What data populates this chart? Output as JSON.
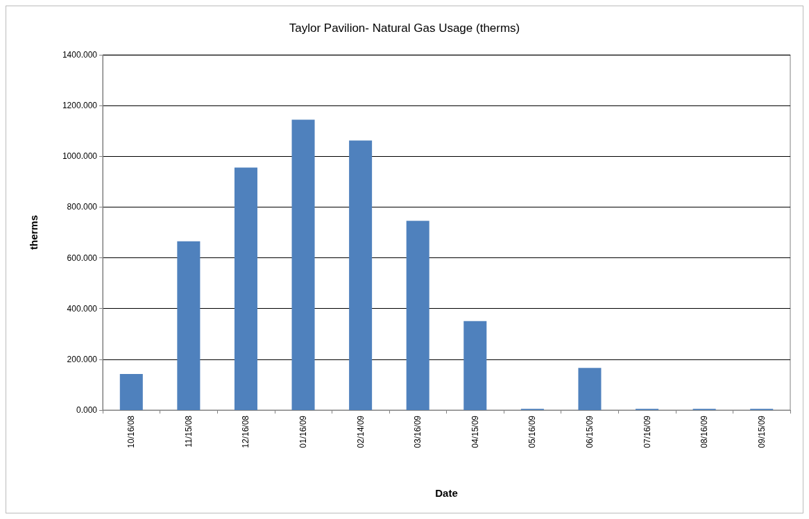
{
  "chart_data": {
    "type": "bar",
    "title": "Taylor Pavilion- Natural Gas Usage (therms)",
    "xlabel": "Date",
    "ylabel": "therms",
    "categories": [
      "10/16/08",
      "11/15/08",
      "12/16/08",
      "01/16/09",
      "02/14/09",
      "03/16/09",
      "04/15/09",
      "05/16/09",
      "06/15/09",
      "07/16/09",
      "08/16/09",
      "09/15/09"
    ],
    "values": [
      142,
      665,
      956,
      1144,
      1062,
      746,
      351,
      5,
      166,
      5,
      5,
      5
    ],
    "color": "#4f81bd",
    "ylim": [
      0,
      1400
    ],
    "yticks": [
      {
        "value": 0,
        "label": "0.000"
      },
      {
        "value": 200,
        "label": "200.000"
      },
      {
        "value": 400,
        "label": "400.000"
      },
      {
        "value": 600,
        "label": "600.000"
      },
      {
        "value": 800,
        "label": "800.000"
      },
      {
        "value": 1000,
        "label": "1000.000"
      },
      {
        "value": 1200,
        "label": "1200.000"
      },
      {
        "value": 1400,
        "label": "1400.000"
      }
    ],
    "grid": "y"
  }
}
